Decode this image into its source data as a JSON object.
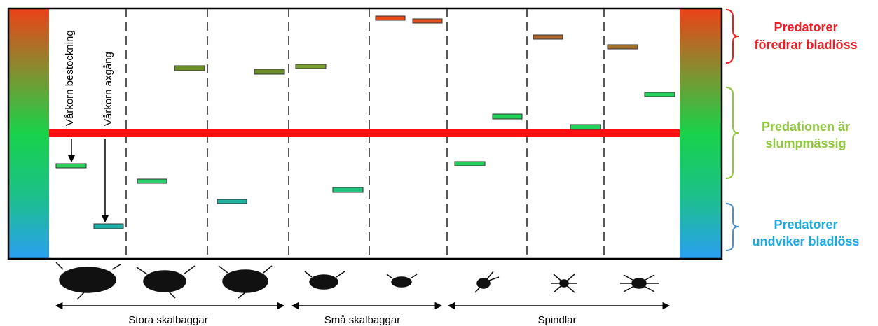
{
  "annotations": [
    "Vårkorn bestockning",
    "Vårkorn axgång"
  ],
  "legend": [
    {
      "lines": [
        "Predatorer",
        "föredrar bladlöss"
      ]
    },
    {
      "lines": [
        "Predationen är",
        "slumpmässig"
      ]
    },
    {
      "lines": [
        "Predatorer",
        "undviker bladlöss"
      ]
    }
  ],
  "groups": [
    "Stora skalbaggar",
    "Små skalbaggar",
    "Spindlar"
  ]
}
